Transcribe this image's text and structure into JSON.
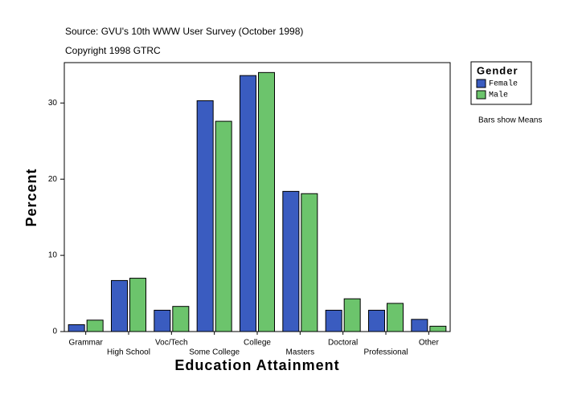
{
  "chart_data": {
    "type": "bar",
    "subtitle": "Source: GVU's 10th WWW User Survey (October 1998)",
    "copyright": "Copyright 1998 GTRC",
    "xlabel": "Education Attainment",
    "ylabel": "Percent",
    "legend_title": "Gender",
    "note": "Bars show Means",
    "categories": [
      "Grammar",
      "High School",
      "Voc/Tech",
      "Some College",
      "College",
      "Masters",
      "Doctoral",
      "Professional",
      "Other"
    ],
    "series": [
      {
        "name": "Female",
        "color": "#3a5cc0",
        "values": [
          0.9,
          6.7,
          2.8,
          30.3,
          33.6,
          18.4,
          2.8,
          2.8,
          1.6
        ]
      },
      {
        "name": "Male",
        "color": "#6cc46c",
        "values": [
          1.5,
          7.0,
          3.3,
          27.6,
          34.0,
          18.1,
          4.3,
          3.7,
          0.7
        ]
      }
    ],
    "ylim": [
      0,
      35.3
    ],
    "yticks": [
      0,
      10,
      20,
      30
    ],
    "grid": false
  }
}
